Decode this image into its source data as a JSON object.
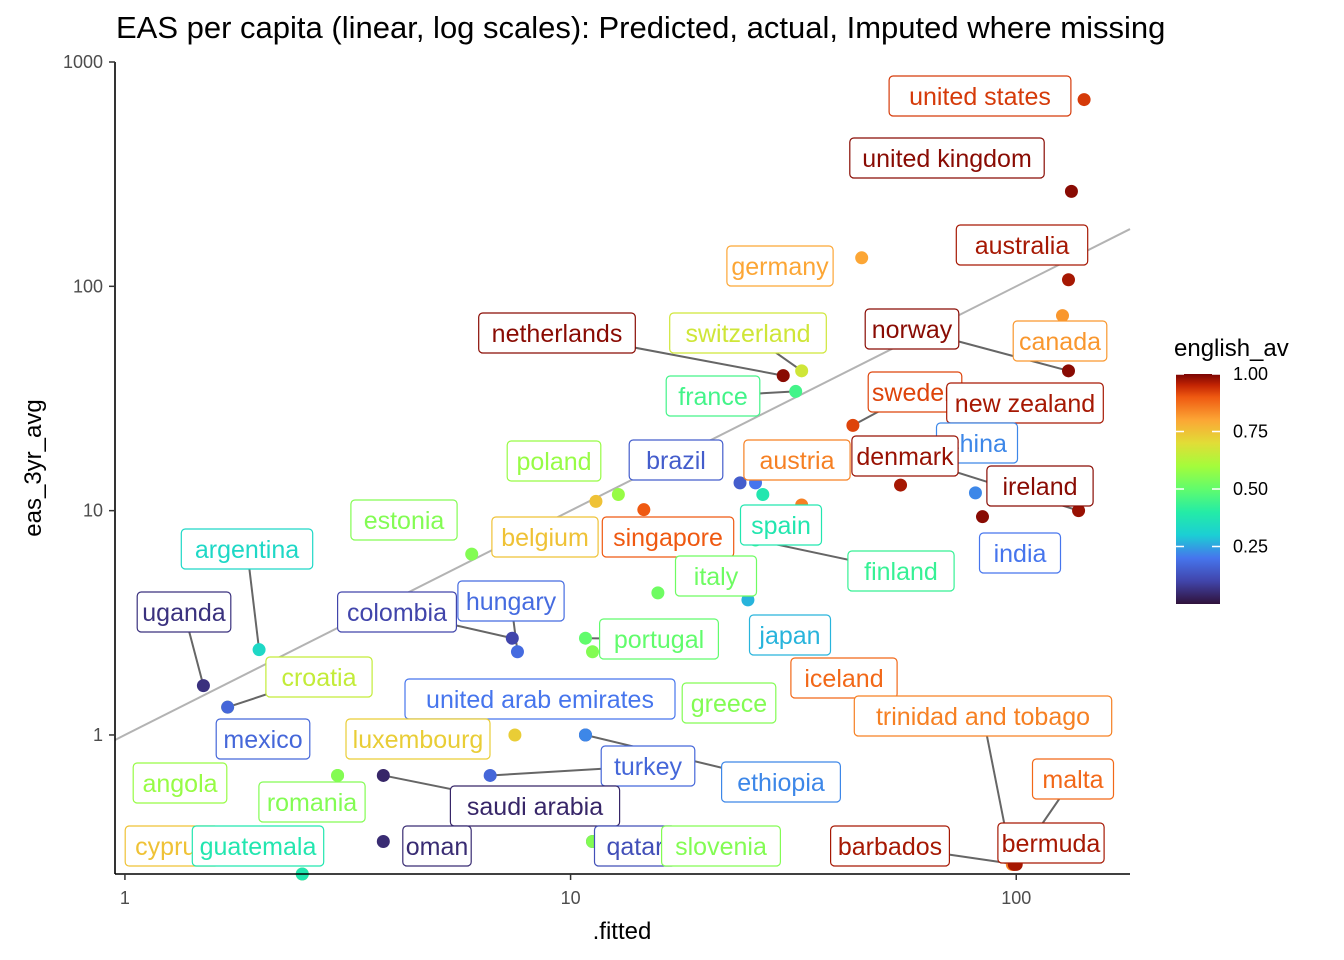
{
  "chart_data": {
    "type": "scatter",
    "title": "EAS per capita (linear, log scales): Predicted, actual, Imputed where missing",
    "xlabel": ".fitted",
    "ylabel": "eas_3yr_avg",
    "x_scale": "log10",
    "y_scale": "log10",
    "xlim": [
      0.95,
      180
    ],
    "ylim": [
      0.24,
      1000
    ],
    "x_ticks": [
      1,
      10,
      100
    ],
    "y_ticks": [
      1,
      10,
      100,
      1000
    ],
    "x_tick_labels": [
      "1",
      "10",
      "100"
    ],
    "y_tick_labels": [
      "1",
      "10",
      "100",
      "1000"
    ],
    "grid": false,
    "reference_line": {
      "description": "y = x",
      "color": "#b3b3b3"
    },
    "legend": {
      "title": "english_av",
      "type": "colorbar",
      "position": "right",
      "range": [
        0,
        1
      ],
      "ticks": [
        "0.25",
        "0.50",
        "0.75",
        "1.00"
      ],
      "tick_values": [
        0.25,
        0.5,
        0.75,
        1.0
      ]
    },
    "points": [
      {
        "label": "united states",
        "x": 142,
        "y": 680,
        "english_av": 0.93
      },
      {
        "label": "united kingdom",
        "x": 133,
        "y": 265,
        "english_av": 0.99
      },
      {
        "label": "australia",
        "x": 131,
        "y": 107,
        "english_av": 0.97
      },
      {
        "label": "canada",
        "x": 127,
        "y": 74,
        "english_av": 0.82
      },
      {
        "label": "germany",
        "x": 45,
        "y": 134,
        "english_av": 0.8
      },
      {
        "label": "netherlands",
        "x": 30,
        "y": 40,
        "english_av": 0.99
      },
      {
        "label": "switzerland",
        "x": 33,
        "y": 42,
        "english_av": 0.67
      },
      {
        "label": "norway",
        "x": 131,
        "y": 42,
        "english_av": 0.99
      },
      {
        "label": "france",
        "x": 32,
        "y": 34,
        "english_av": 0.45
      },
      {
        "label": "sweden",
        "x": 43,
        "y": 24,
        "english_av": 0.92
      },
      {
        "label": "new zealand",
        "x": 55,
        "y": 13,
        "english_av": 0.97
      },
      {
        "label": "china",
        "x": 81,
        "y": 12,
        "english_av": 0.22
      },
      {
        "label": "denmark",
        "x": 138,
        "y": 10,
        "english_av": 0.98
      },
      {
        "label": "ireland",
        "x": 84,
        "y": 9.4,
        "english_av": 0.99
      },
      {
        "label": "india",
        "x": 26,
        "y": 13.3,
        "english_av": 0.2
      },
      {
        "label": "poland",
        "x": 12.8,
        "y": 11.8,
        "english_av": 0.58
      },
      {
        "label": "brazil",
        "x": 24,
        "y": 13.3,
        "english_av": 0.15
      },
      {
        "label": "austria",
        "x": 33,
        "y": 10.6,
        "english_av": 0.85
      },
      {
        "label": "belgium",
        "x": 11.4,
        "y": 11.0,
        "english_av": 0.75
      },
      {
        "label": "singapore",
        "x": 14.6,
        "y": 10.1,
        "english_av": 0.9
      },
      {
        "label": "spain",
        "x": 27,
        "y": 11.8,
        "english_av": 0.38
      },
      {
        "label": "estonia",
        "x": 6.0,
        "y": 6.4,
        "english_av": 0.55
      },
      {
        "label": "argentina",
        "x": 2.0,
        "y": 2.4,
        "english_av": 0.33
      },
      {
        "label": "uganda",
        "x": 1.5,
        "y": 1.66,
        "english_av": 0.06
      },
      {
        "label": "colombia",
        "x": 7.4,
        "y": 2.7,
        "english_av": 0.1
      },
      {
        "label": "hungary",
        "x": 7.6,
        "y": 2.35,
        "english_av": 0.18
      },
      {
        "label": "italy",
        "x": 15.7,
        "y": 4.3,
        "english_av": 0.52
      },
      {
        "label": "japan",
        "x": 25,
        "y": 4.0,
        "english_av": 0.27
      },
      {
        "label": "finland",
        "x": 26,
        "y": 7.4,
        "english_av": 0.43
      },
      {
        "label": "portugal",
        "x": 10.8,
        "y": 2.7,
        "english_av": 0.5
      },
      {
        "label": "greece",
        "x": 11.2,
        "y": 2.35,
        "english_av": 0.55
      },
      {
        "label": "croatia",
        "x": 1.7,
        "y": 1.33,
        "english_av": 0.65
      },
      {
        "label": "mexico",
        "x": 1.7,
        "y": 1.33,
        "english_av": 0.17
      },
      {
        "label": "iceland",
        "x": 10.8,
        "y": 1.0,
        "english_av": 0.88
      },
      {
        "label": "united arab emirates",
        "x": 10.8,
        "y": 1.0,
        "english_av": 0.2
      },
      {
        "label": "luxembourg",
        "x": 7.5,
        "y": 1.0,
        "english_av": 0.73
      },
      {
        "label": "trinidad and tobago",
        "x": 98,
        "y": 0.265,
        "english_av": 0.85
      },
      {
        "label": "turkey",
        "x": 6.6,
        "y": 0.66,
        "english_av": 0.17
      },
      {
        "label": "ethiopia",
        "x": 10.8,
        "y": 1.0,
        "english_av": 0.22
      },
      {
        "label": "angola",
        "x": 3.0,
        "y": 0.66,
        "english_av": 0.58
      },
      {
        "label": "romania",
        "x": 3.0,
        "y": 0.66,
        "english_av": 0.55
      },
      {
        "label": "saudi arabia",
        "x": 3.8,
        "y": 0.66,
        "english_av": 0.04
      },
      {
        "label": "malta",
        "x": 99,
        "y": 0.265,
        "english_av": 0.88
      },
      {
        "label": "cyprus",
        "x": 2.5,
        "y": 0.24,
        "english_av": 0.75
      },
      {
        "label": "guatemala",
        "x": 2.5,
        "y": 0.24,
        "english_av": 0.38
      },
      {
        "label": "oman",
        "x": 3.8,
        "y": 0.335,
        "english_av": 0.05
      },
      {
        "label": "qatar",
        "x": 11.2,
        "y": 0.335,
        "english_av": 0.12
      },
      {
        "label": "slovenia",
        "x": 11.2,
        "y": 0.335,
        "english_av": 0.55
      },
      {
        "label": "barbados",
        "x": 100,
        "y": 0.265,
        "english_av": 0.97
      },
      {
        "label": "bermuda",
        "x": 99,
        "y": 0.265,
        "english_av": 0.97
      }
    ]
  }
}
